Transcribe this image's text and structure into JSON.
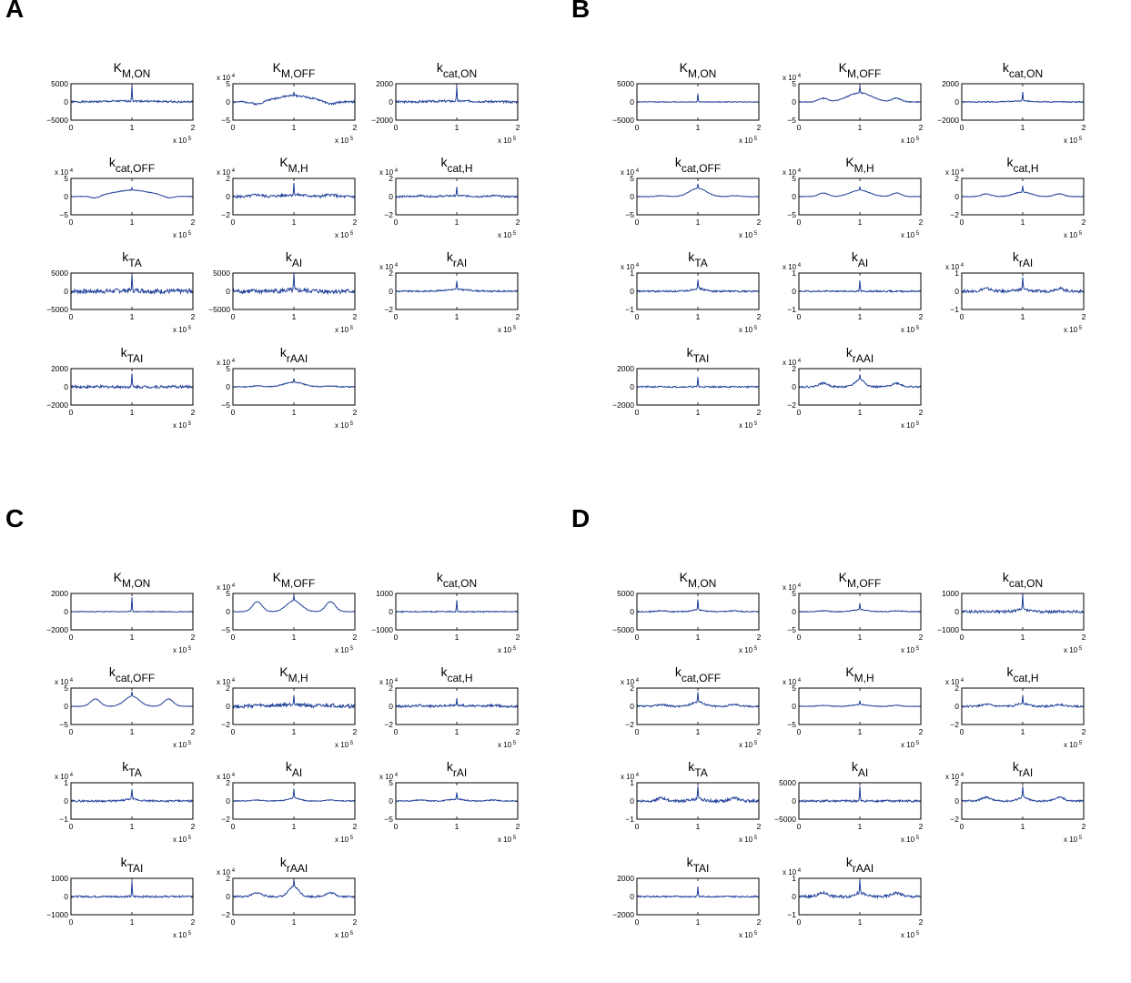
{
  "panels": [
    {
      "label": "A",
      "subplots": [
        {
          "title": "K",
          "sub": "M,ON",
          "ymin": -5000,
          "ymax": 5000,
          "yticks": [
            "5000",
            "0",
            "−5000"
          ],
          "exp": "",
          "peak": 0.9,
          "hump": 0.05,
          "humpWidth": 0.2,
          "side": 0.0,
          "noise": 0.1,
          "seed": 1
        },
        {
          "title": "K",
          "sub": "M,OFF",
          "ymin": -5,
          "ymax": 5,
          "yticks": [
            "5",
            "0",
            "−5"
          ],
          "exp": "4",
          "peak": 0.15,
          "hump": 0.35,
          "humpWidth": 0.14,
          "side": -0.15,
          "noise": 0.1,
          "seed": 2
        },
        {
          "title": "k",
          "sub": "cat,ON",
          "ymin": -2000,
          "ymax": 2000,
          "yticks": [
            "2000",
            "0",
            "−2000"
          ],
          "exp": "",
          "peak": 0.75,
          "hump": 0.05,
          "humpWidth": 0.2,
          "side": 0.0,
          "noise": 0.12,
          "seed": 3
        },
        {
          "title": "k",
          "sub": "cat,OFF",
          "ymin": -5,
          "ymax": 5,
          "yticks": [
            "5",
            "0",
            "−5"
          ],
          "exp": "4",
          "peak": 0.12,
          "hump": 0.35,
          "humpWidth": 0.16,
          "side": -0.12,
          "noise": 0.04,
          "seed": 4
        },
        {
          "title": "K",
          "sub": "M,H",
          "ymin": -2,
          "ymax": 2,
          "yticks": [
            "2",
            "0",
            "−2"
          ],
          "exp": "4",
          "peak": 0.6,
          "hump": 0.1,
          "humpWidth": 0.1,
          "side": 0.1,
          "noise": 0.15,
          "seed": 5
        },
        {
          "title": "k",
          "sub": "cat,H",
          "ymin": -2,
          "ymax": 2,
          "yticks": [
            "2",
            "0",
            "−2"
          ],
          "exp": "4",
          "peak": 0.45,
          "hump": 0.05,
          "humpWidth": 0.1,
          "side": 0.05,
          "noise": 0.1,
          "seed": 6
        },
        {
          "title": "k",
          "sub": "TA",
          "ymin": -5000,
          "ymax": 5000,
          "yticks": [
            "5000",
            "0",
            "−5000"
          ],
          "exp": "",
          "peak": 0.8,
          "hump": 0.05,
          "humpWidth": 0.1,
          "side": 0.0,
          "noise": 0.25,
          "seed": 7
        },
        {
          "title": "k",
          "sub": "AI",
          "ymin": -5000,
          "ymax": 5000,
          "yticks": [
            "5000",
            "0",
            "−5000"
          ],
          "exp": "",
          "peak": 0.9,
          "hump": 0.05,
          "humpWidth": 0.1,
          "side": 0.0,
          "noise": 0.25,
          "seed": 8
        },
        {
          "title": "k",
          "sub": "rAI",
          "ymin": -2,
          "ymax": 2,
          "yticks": [
            "2",
            "0",
            "−2"
          ],
          "exp": "4",
          "peak": 0.45,
          "hump": 0.1,
          "humpWidth": 0.1,
          "side": 0.0,
          "noise": 0.08,
          "seed": 9
        },
        {
          "title": "k",
          "sub": "TAI",
          "ymin": -2000,
          "ymax": 2000,
          "yticks": [
            "2000",
            "0",
            "−2000"
          ],
          "exp": "",
          "peak": 0.7,
          "hump": 0.0,
          "humpWidth": 0.1,
          "side": 0.0,
          "noise": 0.15,
          "seed": 10
        },
        {
          "title": "k",
          "sub": "rAAI",
          "ymin": -5,
          "ymax": 5,
          "yticks": [
            "5",
            "0",
            "−5"
          ],
          "exp": "4",
          "peak": 0.2,
          "hump": 0.25,
          "humpWidth": 0.08,
          "side": 0.05,
          "noise": 0.06,
          "seed": 11
        }
      ]
    },
    {
      "label": "B",
      "subplots": [
        {
          "title": "K",
          "sub": "M,ON",
          "ymin": -5000,
          "ymax": 5000,
          "yticks": [
            "5000",
            "0",
            "−5000"
          ],
          "exp": "",
          "peak": 0.45,
          "hump": 0.0,
          "humpWidth": 0.1,
          "side": 0.0,
          "noise": 0.04,
          "seed": 12
        },
        {
          "title": "K",
          "sub": "M,OFF",
          "ymin": -5,
          "ymax": 5,
          "yticks": [
            "5",
            "0",
            "−5"
          ],
          "exp": "4",
          "peak": 0.35,
          "hump": 0.5,
          "humpWidth": 0.1,
          "side": 0.2,
          "noise": 0.05,
          "seed": 13
        },
        {
          "title": "k",
          "sub": "cat,ON",
          "ymin": -2000,
          "ymax": 2000,
          "yticks": [
            "2000",
            "0",
            "−2000"
          ],
          "exp": "",
          "peak": 0.5,
          "hump": 0.05,
          "humpWidth": 0.1,
          "side": 0.0,
          "noise": 0.06,
          "seed": 14
        },
        {
          "title": "k",
          "sub": "cat,OFF",
          "ymin": -5,
          "ymax": 5,
          "yticks": [
            "5",
            "0",
            "−5"
          ],
          "exp": "4",
          "peak": 0.25,
          "hump": 0.45,
          "humpWidth": 0.07,
          "side": 0.05,
          "noise": 0.03,
          "seed": 15
        },
        {
          "title": "K",
          "sub": "M,H",
          "ymin": -5,
          "ymax": 5,
          "yticks": [
            "5",
            "0",
            "−5"
          ],
          "exp": "4",
          "peak": 0.2,
          "hump": 0.35,
          "humpWidth": 0.08,
          "side": 0.2,
          "noise": 0.03,
          "seed": 16
        },
        {
          "title": "k",
          "sub": "cat,H",
          "ymin": -2,
          "ymax": 2,
          "yticks": [
            "2",
            "0",
            "−2"
          ],
          "exp": "4",
          "peak": 0.35,
          "hump": 0.25,
          "humpWidth": 0.07,
          "side": 0.15,
          "noise": 0.04,
          "seed": 17
        },
        {
          "title": "k",
          "sub": "TA",
          "ymin": -1,
          "ymax": 1,
          "yticks": [
            "1",
            "0",
            "−1"
          ],
          "exp": "4",
          "peak": 0.5,
          "hump": 0.15,
          "humpWidth": 0.05,
          "side": 0.0,
          "noise": 0.1,
          "seed": 18
        },
        {
          "title": "k",
          "sub": "AI",
          "ymin": -1,
          "ymax": 1,
          "yticks": [
            "1",
            "0",
            "−1"
          ],
          "exp": "4",
          "peak": 0.6,
          "hump": 0.0,
          "humpWidth": 0.1,
          "side": 0.0,
          "noise": 0.08,
          "seed": 19
        },
        {
          "title": "k",
          "sub": "rAI",
          "ymin": -1,
          "ymax": 1,
          "yticks": [
            "1",
            "0",
            "−1"
          ],
          "exp": "4",
          "peak": 0.7,
          "hump": 0.1,
          "humpWidth": 0.05,
          "side": 0.15,
          "noise": 0.15,
          "seed": 20
        },
        {
          "title": "k",
          "sub": "TAI",
          "ymin": -2000,
          "ymax": 2000,
          "yticks": [
            "2000",
            "0",
            "−2000"
          ],
          "exp": "",
          "peak": 0.55,
          "hump": 0.0,
          "humpWidth": 0.1,
          "side": 0.0,
          "noise": 0.08,
          "seed": 21
        },
        {
          "title": "k",
          "sub": "rAAI",
          "ymin": -2,
          "ymax": 2,
          "yticks": [
            "2",
            "0",
            "−2"
          ],
          "exp": "4",
          "peak": 0.3,
          "hump": 0.4,
          "humpWidth": 0.04,
          "side": 0.2,
          "noise": 0.1,
          "seed": 22
        }
      ]
    },
    {
      "label": "C",
      "subplots": [
        {
          "title": "K",
          "sub": "M,ON",
          "ymin": -2000,
          "ymax": 2000,
          "yticks": [
            "2000",
            "0",
            "−2000"
          ],
          "exp": "",
          "peak": 0.8,
          "hump": 0.0,
          "humpWidth": 0.1,
          "side": 0.0,
          "noise": 0.05,
          "seed": 23
        },
        {
          "title": "K",
          "sub": "M,OFF",
          "ymin": -5,
          "ymax": 5,
          "yticks": [
            "5",
            "0",
            "−5"
          ],
          "exp": "4",
          "peak": 0.3,
          "hump": 0.6,
          "humpWidth": 0.06,
          "side": 0.55,
          "noise": 0.03,
          "seed": 24
        },
        {
          "title": "k",
          "sub": "cat,ON",
          "ymin": -1000,
          "ymax": 1000,
          "yticks": [
            "1000",
            "0",
            "−1000"
          ],
          "exp": "",
          "peak": 0.65,
          "hump": 0.0,
          "humpWidth": 0.1,
          "side": 0.0,
          "noise": 0.06,
          "seed": 25
        },
        {
          "title": "k",
          "sub": "cat,OFF",
          "ymin": -5,
          "ymax": 5,
          "yticks": [
            "5",
            "0",
            "−5"
          ],
          "exp": "4",
          "peak": 0.25,
          "hump": 0.55,
          "humpWidth": 0.06,
          "side": 0.4,
          "noise": 0.03,
          "seed": 26
        },
        {
          "title": "K",
          "sub": "M,H",
          "ymin": -2,
          "ymax": 2,
          "yticks": [
            "2",
            "0",
            "−2"
          ],
          "exp": "4",
          "peak": 0.6,
          "hump": 0.1,
          "humpWidth": 0.1,
          "side": 0.05,
          "noise": 0.2,
          "seed": 27
        },
        {
          "title": "k",
          "sub": "cat,H",
          "ymin": -2,
          "ymax": 2,
          "yticks": [
            "2",
            "0",
            "−2"
          ],
          "exp": "4",
          "peak": 0.45,
          "hump": 0.05,
          "humpWidth": 0.1,
          "side": 0.05,
          "noise": 0.12,
          "seed": 28
        },
        {
          "title": "k",
          "sub": "TA",
          "ymin": -1,
          "ymax": 1,
          "yticks": [
            "1",
            "0",
            "−1"
          ],
          "exp": "4",
          "peak": 0.6,
          "hump": 0.1,
          "humpWidth": 0.05,
          "side": 0.0,
          "noise": 0.1,
          "seed": 29
        },
        {
          "title": "k",
          "sub": "AI",
          "ymin": -2,
          "ymax": 2,
          "yticks": [
            "2",
            "0",
            "−2"
          ],
          "exp": "4",
          "peak": 0.5,
          "hump": 0.15,
          "humpWidth": 0.05,
          "side": 0.05,
          "noise": 0.05,
          "seed": 30
        },
        {
          "title": "k",
          "sub": "rAI",
          "ymin": -5,
          "ymax": 5,
          "yticks": [
            "5",
            "0",
            "−5"
          ],
          "exp": "4",
          "peak": 0.35,
          "hump": 0.1,
          "humpWidth": 0.06,
          "side": 0.05,
          "noise": 0.06,
          "seed": 31
        },
        {
          "title": "k",
          "sub": "TAI",
          "ymin": -1000,
          "ymax": 1000,
          "yticks": [
            "1000",
            "0",
            "−1000"
          ],
          "exp": "",
          "peak": 0.8,
          "hump": 0.0,
          "humpWidth": 0.1,
          "side": 0.0,
          "noise": 0.1,
          "seed": 32
        },
        {
          "title": "k",
          "sub": "rAAI",
          "ymin": -2,
          "ymax": 2,
          "yticks": [
            "2",
            "0",
            "−2"
          ],
          "exp": "4",
          "peak": 0.35,
          "hump": 0.55,
          "humpWidth": 0.04,
          "side": 0.2,
          "noise": 0.1,
          "seed": 33
        }
      ]
    },
    {
      "label": "D",
      "subplots": [
        {
          "title": "K",
          "sub": "M,ON",
          "ymin": -5000,
          "ymax": 5000,
          "yticks": [
            "5000",
            "0",
            "−5000"
          ],
          "exp": "",
          "peak": 0.55,
          "hump": 0.1,
          "humpWidth": 0.05,
          "side": 0.05,
          "noise": 0.06,
          "seed": 34
        },
        {
          "title": "K",
          "sub": "M,OFF",
          "ymin": -5,
          "ymax": 5,
          "yticks": [
            "5",
            "0",
            "−5"
          ],
          "exp": "4",
          "peak": 0.35,
          "hump": 0.1,
          "humpWidth": 0.06,
          "side": 0.05,
          "noise": 0.05,
          "seed": 35
        },
        {
          "title": "k",
          "sub": "cat,ON",
          "ymin": -1000,
          "ymax": 1000,
          "yticks": [
            "1000",
            "0",
            "−1000"
          ],
          "exp": "",
          "peak": 0.9,
          "hump": 0.1,
          "humpWidth": 0.05,
          "side": 0.0,
          "noise": 0.15,
          "seed": 36
        },
        {
          "title": "k",
          "sub": "cat,OFF",
          "ymin": -2,
          "ymax": 2,
          "yticks": [
            "2",
            "0",
            "−2"
          ],
          "exp": "4",
          "peak": 0.5,
          "hump": 0.25,
          "humpWidth": 0.05,
          "side": 0.1,
          "noise": 0.1,
          "seed": 37
        },
        {
          "title": "K",
          "sub": "M,H",
          "ymin": -5,
          "ymax": 5,
          "yticks": [
            "5",
            "0",
            "−5"
          ],
          "exp": "4",
          "peak": 0.2,
          "hump": 0.1,
          "humpWidth": 0.06,
          "side": 0.05,
          "noise": 0.04,
          "seed": 38
        },
        {
          "title": "k",
          "sub": "cat,H",
          "ymin": -2,
          "ymax": 2,
          "yticks": [
            "2",
            "0",
            "−2"
          ],
          "exp": "4",
          "peak": 0.45,
          "hump": 0.15,
          "humpWidth": 0.05,
          "side": 0.1,
          "noise": 0.1,
          "seed": 39
        },
        {
          "title": "k",
          "sub": "TA",
          "ymin": -1,
          "ymax": 1,
          "yticks": [
            "1",
            "0",
            "−1"
          ],
          "exp": "4",
          "peak": 0.7,
          "hump": 0.1,
          "humpWidth": 0.05,
          "side": 0.15,
          "noise": 0.15,
          "seed": 40
        },
        {
          "title": "k",
          "sub": "AI",
          "ymin": -5000,
          "ymax": 5000,
          "yticks": [
            "5000",
            "0",
            "−5000"
          ],
          "exp": "",
          "peak": 0.8,
          "hump": 0.0,
          "humpWidth": 0.1,
          "side": 0.0,
          "noise": 0.12,
          "seed": 41
        },
        {
          "title": "k",
          "sub": "rAI",
          "ymin": -2,
          "ymax": 2,
          "yticks": [
            "2",
            "0",
            "−2"
          ],
          "exp": "4",
          "peak": 0.6,
          "hump": 0.2,
          "humpWidth": 0.04,
          "side": 0.2,
          "noise": 0.1,
          "seed": 42
        },
        {
          "title": "k",
          "sub": "TAI",
          "ymin": -2000,
          "ymax": 2000,
          "yticks": [
            "2000",
            "0",
            "−2000"
          ],
          "exp": "",
          "peak": 0.55,
          "hump": 0.0,
          "humpWidth": 0.1,
          "side": 0.0,
          "noise": 0.08,
          "seed": 43
        },
        {
          "title": "k",
          "sub": "rAAI",
          "ymin": -1,
          "ymax": 1,
          "yticks": [
            "1",
            "0",
            "−1"
          ],
          "exp": "4",
          "peak": 0.75,
          "hump": 0.2,
          "humpWidth": 0.04,
          "side": 0.2,
          "noise": 0.15,
          "seed": 44
        }
      ]
    }
  ],
  "xaxis": {
    "ticks": [
      "0",
      "1",
      "2"
    ],
    "xmin": 0,
    "xmax": 2,
    "exp": "5"
  },
  "line_color": "#1f3f99",
  "chart_data": {
    "type": "line",
    "description_units": "each subplot: y vs x, x from 0 to 2 x 10^5, sharp peak at x = 1 x 10^5",
    "x_range": [
      0,
      200000
    ],
    "peak_location": 100000
  }
}
